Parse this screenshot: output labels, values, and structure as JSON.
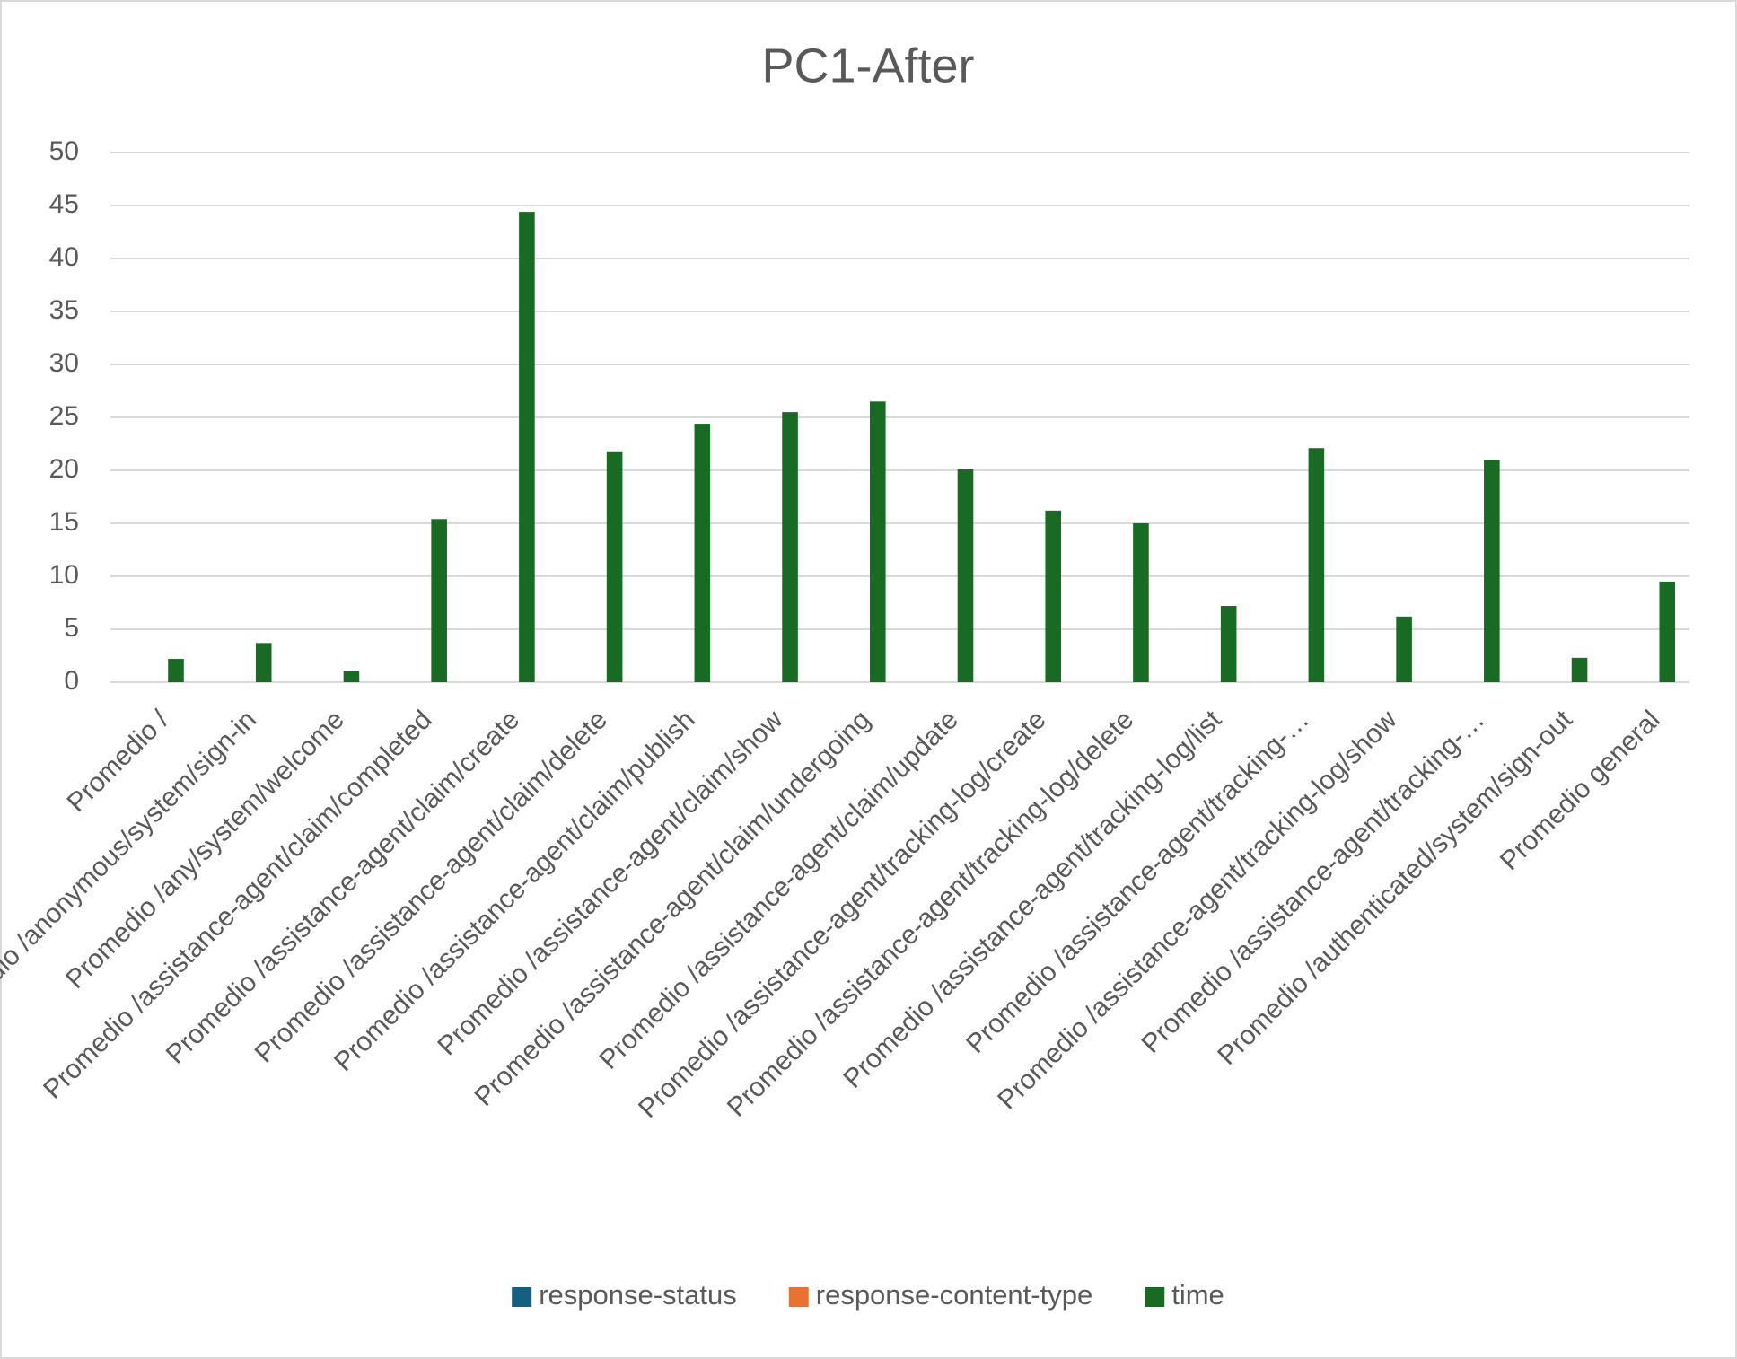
{
  "chart_data": {
    "type": "bar",
    "title": "PC1-After",
    "categories": [
      "Promedio /",
      "Promedio /anonymous/system/sign-in",
      "Promedio /any/system/welcome",
      "Promedio /assistance-agent/claim/completed",
      "Promedio /assistance-agent/claim/create",
      "Promedio /assistance-agent/claim/delete",
      "Promedio /assistance-agent/claim/publish",
      "Promedio /assistance-agent/claim/show",
      "Promedio /assistance-agent/claim/undergoing",
      "Promedio /assistance-agent/claim/update",
      "Promedio /assistance-agent/tracking-log/create",
      "Promedio /assistance-agent/tracking-log/delete",
      "Promedio /assistance-agent/tracking-log/list",
      "Promedio /assistance-agent/tracking-…",
      "Promedio /assistance-agent/tracking-log/show",
      "Promedio /assistance-agent/tracking-…",
      "Promedio /authenticated/system/sign-out",
      "Promedio general"
    ],
    "series": [
      {
        "name": "response-status",
        "color": "#156082",
        "values": [
          0,
          0,
          0,
          0,
          0,
          0,
          0,
          0,
          0,
          0,
          0,
          0,
          0,
          0,
          0,
          0,
          0,
          0
        ]
      },
      {
        "name": "response-content-type",
        "color": "#e97132",
        "values": [
          0,
          0,
          0,
          0,
          0,
          0,
          0,
          0,
          0,
          0,
          0,
          0,
          0,
          0,
          0,
          0,
          0,
          0
        ]
      },
      {
        "name": "time",
        "color": "#196b24",
        "values": [
          2.2,
          3.7,
          1.1,
          15.4,
          44.4,
          21.8,
          24.4,
          25.5,
          26.5,
          20.1,
          16.2,
          15.0,
          7.2,
          22.1,
          6.2,
          21.0,
          2.3,
          9.5
        ]
      }
    ],
    "ylim": [
      0,
      50
    ],
    "yticks": [
      0,
      5,
      10,
      15,
      20,
      25,
      30,
      35,
      40,
      45,
      50
    ],
    "grid": true,
    "legend": "bottom"
  }
}
